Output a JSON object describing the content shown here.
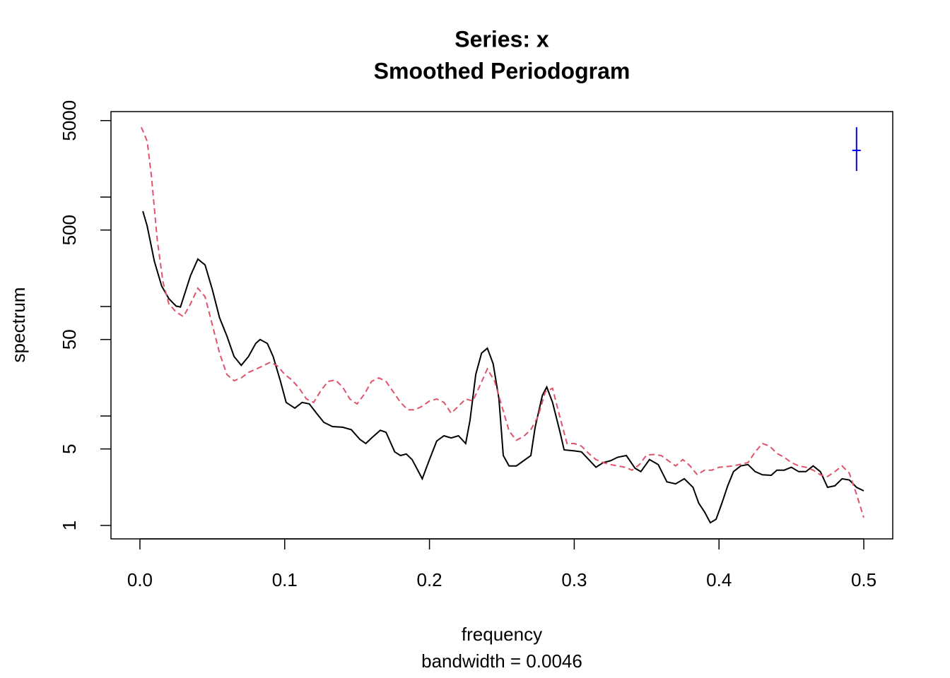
{
  "chart_data": {
    "type": "line",
    "title": "Series: x",
    "subtitle": "Smoothed Periodogram",
    "xlabel": "frequency",
    "sublabel": "bandwidth = 0.0046",
    "ylabel": "spectrum",
    "log_y": true,
    "xlim": [
      -0.02,
      0.52
    ],
    "ylim": [
      0.754,
      6040
    ],
    "xticks": [
      {
        "value": 0,
        "label": "0.0"
      },
      0.1,
      0.2,
      0.3,
      0.4,
      0.5
    ],
    "yticks": [
      1,
      5,
      50,
      500,
      5000
    ],
    "yminor_ticks": [
      10,
      100,
      1000
    ],
    "series": [
      {
        "color": "#000000",
        "dash": false,
        "x": [
          0.002,
          0.005,
          0.01,
          0.015,
          0.02,
          0.025,
          0.028,
          0.035,
          0.04,
          0.045,
          0.05,
          0.055,
          0.06,
          0.065,
          0.07,
          0.075,
          0.08,
          0.083,
          0.088,
          0.092,
          0.097,
          0.101,
          0.107,
          0.112,
          0.117,
          0.122,
          0.127,
          0.133,
          0.14,
          0.146,
          0.152,
          0.156,
          0.16,
          0.166,
          0.17,
          0.176,
          0.18,
          0.184,
          0.188,
          0.195,
          0.2,
          0.205,
          0.21,
          0.215,
          0.22,
          0.225,
          0.228,
          0.232,
          0.236,
          0.24,
          0.244,
          0.248,
          0.251,
          0.255,
          0.26,
          0.265,
          0.27,
          0.273,
          0.278,
          0.281,
          0.285,
          0.29,
          0.293,
          0.3,
          0.305,
          0.31,
          0.315,
          0.32,
          0.325,
          0.33,
          0.336,
          0.342,
          0.346,
          0.352,
          0.358,
          0.364,
          0.37,
          0.376,
          0.382,
          0.386,
          0.39,
          0.394,
          0.398,
          0.402,
          0.406,
          0.41,
          0.415,
          0.42,
          0.425,
          0.43,
          0.436,
          0.44,
          0.445,
          0.45,
          0.455,
          0.46,
          0.465,
          0.47,
          0.475,
          0.48,
          0.485,
          0.49,
          0.495,
          0.5
        ],
        "values": [
          743,
          544,
          259,
          154,
          118,
          101,
          99,
          192,
          271,
          240,
          143,
          79,
          54,
          35,
          29,
          35,
          46,
          50,
          46,
          35,
          21,
          13.3,
          11.8,
          13.3,
          12.9,
          10.6,
          8.75,
          8.0,
          7.9,
          7.5,
          6.1,
          5.6,
          6.3,
          7.4,
          7.1,
          4.7,
          4.35,
          4.5,
          4.0,
          2.67,
          4.0,
          5.9,
          6.6,
          6.3,
          6.6,
          5.6,
          9.1,
          24,
          37.5,
          41.6,
          30,
          14.3,
          4.35,
          3.5,
          3.5,
          3.9,
          4.35,
          7.9,
          15.4,
          18.4,
          13.3,
          7.3,
          4.9,
          4.8,
          4.7,
          4.0,
          3.4,
          3.75,
          3.9,
          4.2,
          4.35,
          3.33,
          3.1,
          4.0,
          3.6,
          2.5,
          2.4,
          2.67,
          2.23,
          1.6,
          1.33,
          1.06,
          1.14,
          1.6,
          2.3,
          3.1,
          3.5,
          3.6,
          3.1,
          2.9,
          2.87,
          3.2,
          3.2,
          3.4,
          3.1,
          3.1,
          3.5,
          3.1,
          2.23,
          2.3,
          2.67,
          2.6,
          2.23,
          2.07
        ]
      },
      {
        "color": "#df536b",
        "dash": true,
        "x": [
          0.001,
          0.005,
          0.008,
          0.012,
          0.016,
          0.02,
          0.025,
          0.03,
          0.035,
          0.04,
          0.045,
          0.05,
          0.055,
          0.06,
          0.065,
          0.07,
          0.075,
          0.08,
          0.085,
          0.09,
          0.095,
          0.1,
          0.105,
          0.11,
          0.115,
          0.12,
          0.125,
          0.13,
          0.135,
          0.14,
          0.145,
          0.15,
          0.155,
          0.16,
          0.165,
          0.17,
          0.175,
          0.18,
          0.185,
          0.19,
          0.195,
          0.2,
          0.205,
          0.21,
          0.215,
          0.22,
          0.225,
          0.23,
          0.235,
          0.24,
          0.245,
          0.25,
          0.255,
          0.26,
          0.265,
          0.27,
          0.275,
          0.28,
          0.285,
          0.29,
          0.295,
          0.3,
          0.305,
          0.31,
          0.315,
          0.32,
          0.325,
          0.33,
          0.335,
          0.34,
          0.345,
          0.35,
          0.355,
          0.36,
          0.365,
          0.37,
          0.375,
          0.38,
          0.385,
          0.39,
          0.395,
          0.4,
          0.41,
          0.42,
          0.425,
          0.43,
          0.435,
          0.44,
          0.445,
          0.45,
          0.455,
          0.46,
          0.465,
          0.47,
          0.475,
          0.48,
          0.485,
          0.49,
          0.495,
          0.5
        ],
        "values": [
          4350,
          3235,
          1540,
          404,
          166,
          106,
          89,
          81,
          106,
          147,
          123,
          68,
          37.5,
          24,
          21,
          22.3,
          25,
          26.7,
          28.7,
          31,
          28.7,
          24,
          21.3,
          17.9,
          14.3,
          13.3,
          17.1,
          20.7,
          21.3,
          18.4,
          14.3,
          12.9,
          15.8,
          20.7,
          22.3,
          20.7,
          16.6,
          13.3,
          11.4,
          11.4,
          12.3,
          13.7,
          14.3,
          13.3,
          10.6,
          12.3,
          14.3,
          13.7,
          19.2,
          27,
          20.7,
          12.3,
          7.3,
          6.0,
          6.5,
          7.5,
          9.9,
          16.6,
          17.9,
          9.9,
          5.6,
          5.6,
          5.3,
          4.55,
          4.0,
          3.75,
          3.6,
          3.5,
          3.4,
          3.2,
          3.6,
          4.4,
          4.45,
          4.35,
          3.9,
          3.5,
          4.0,
          3.5,
          2.9,
          3.2,
          3.2,
          3.4,
          3.5,
          3.75,
          4.7,
          5.6,
          5.3,
          4.55,
          4.2,
          3.75,
          3.5,
          3.4,
          3.2,
          2.9,
          2.8,
          3.1,
          3.5,
          3.0,
          1.92,
          1.18
        ]
      }
    ],
    "ci_bar": {
      "x": 0.495,
      "center": 2670,
      "lower": 1730,
      "upper": 4350,
      "color": "#0000ff"
    }
  }
}
